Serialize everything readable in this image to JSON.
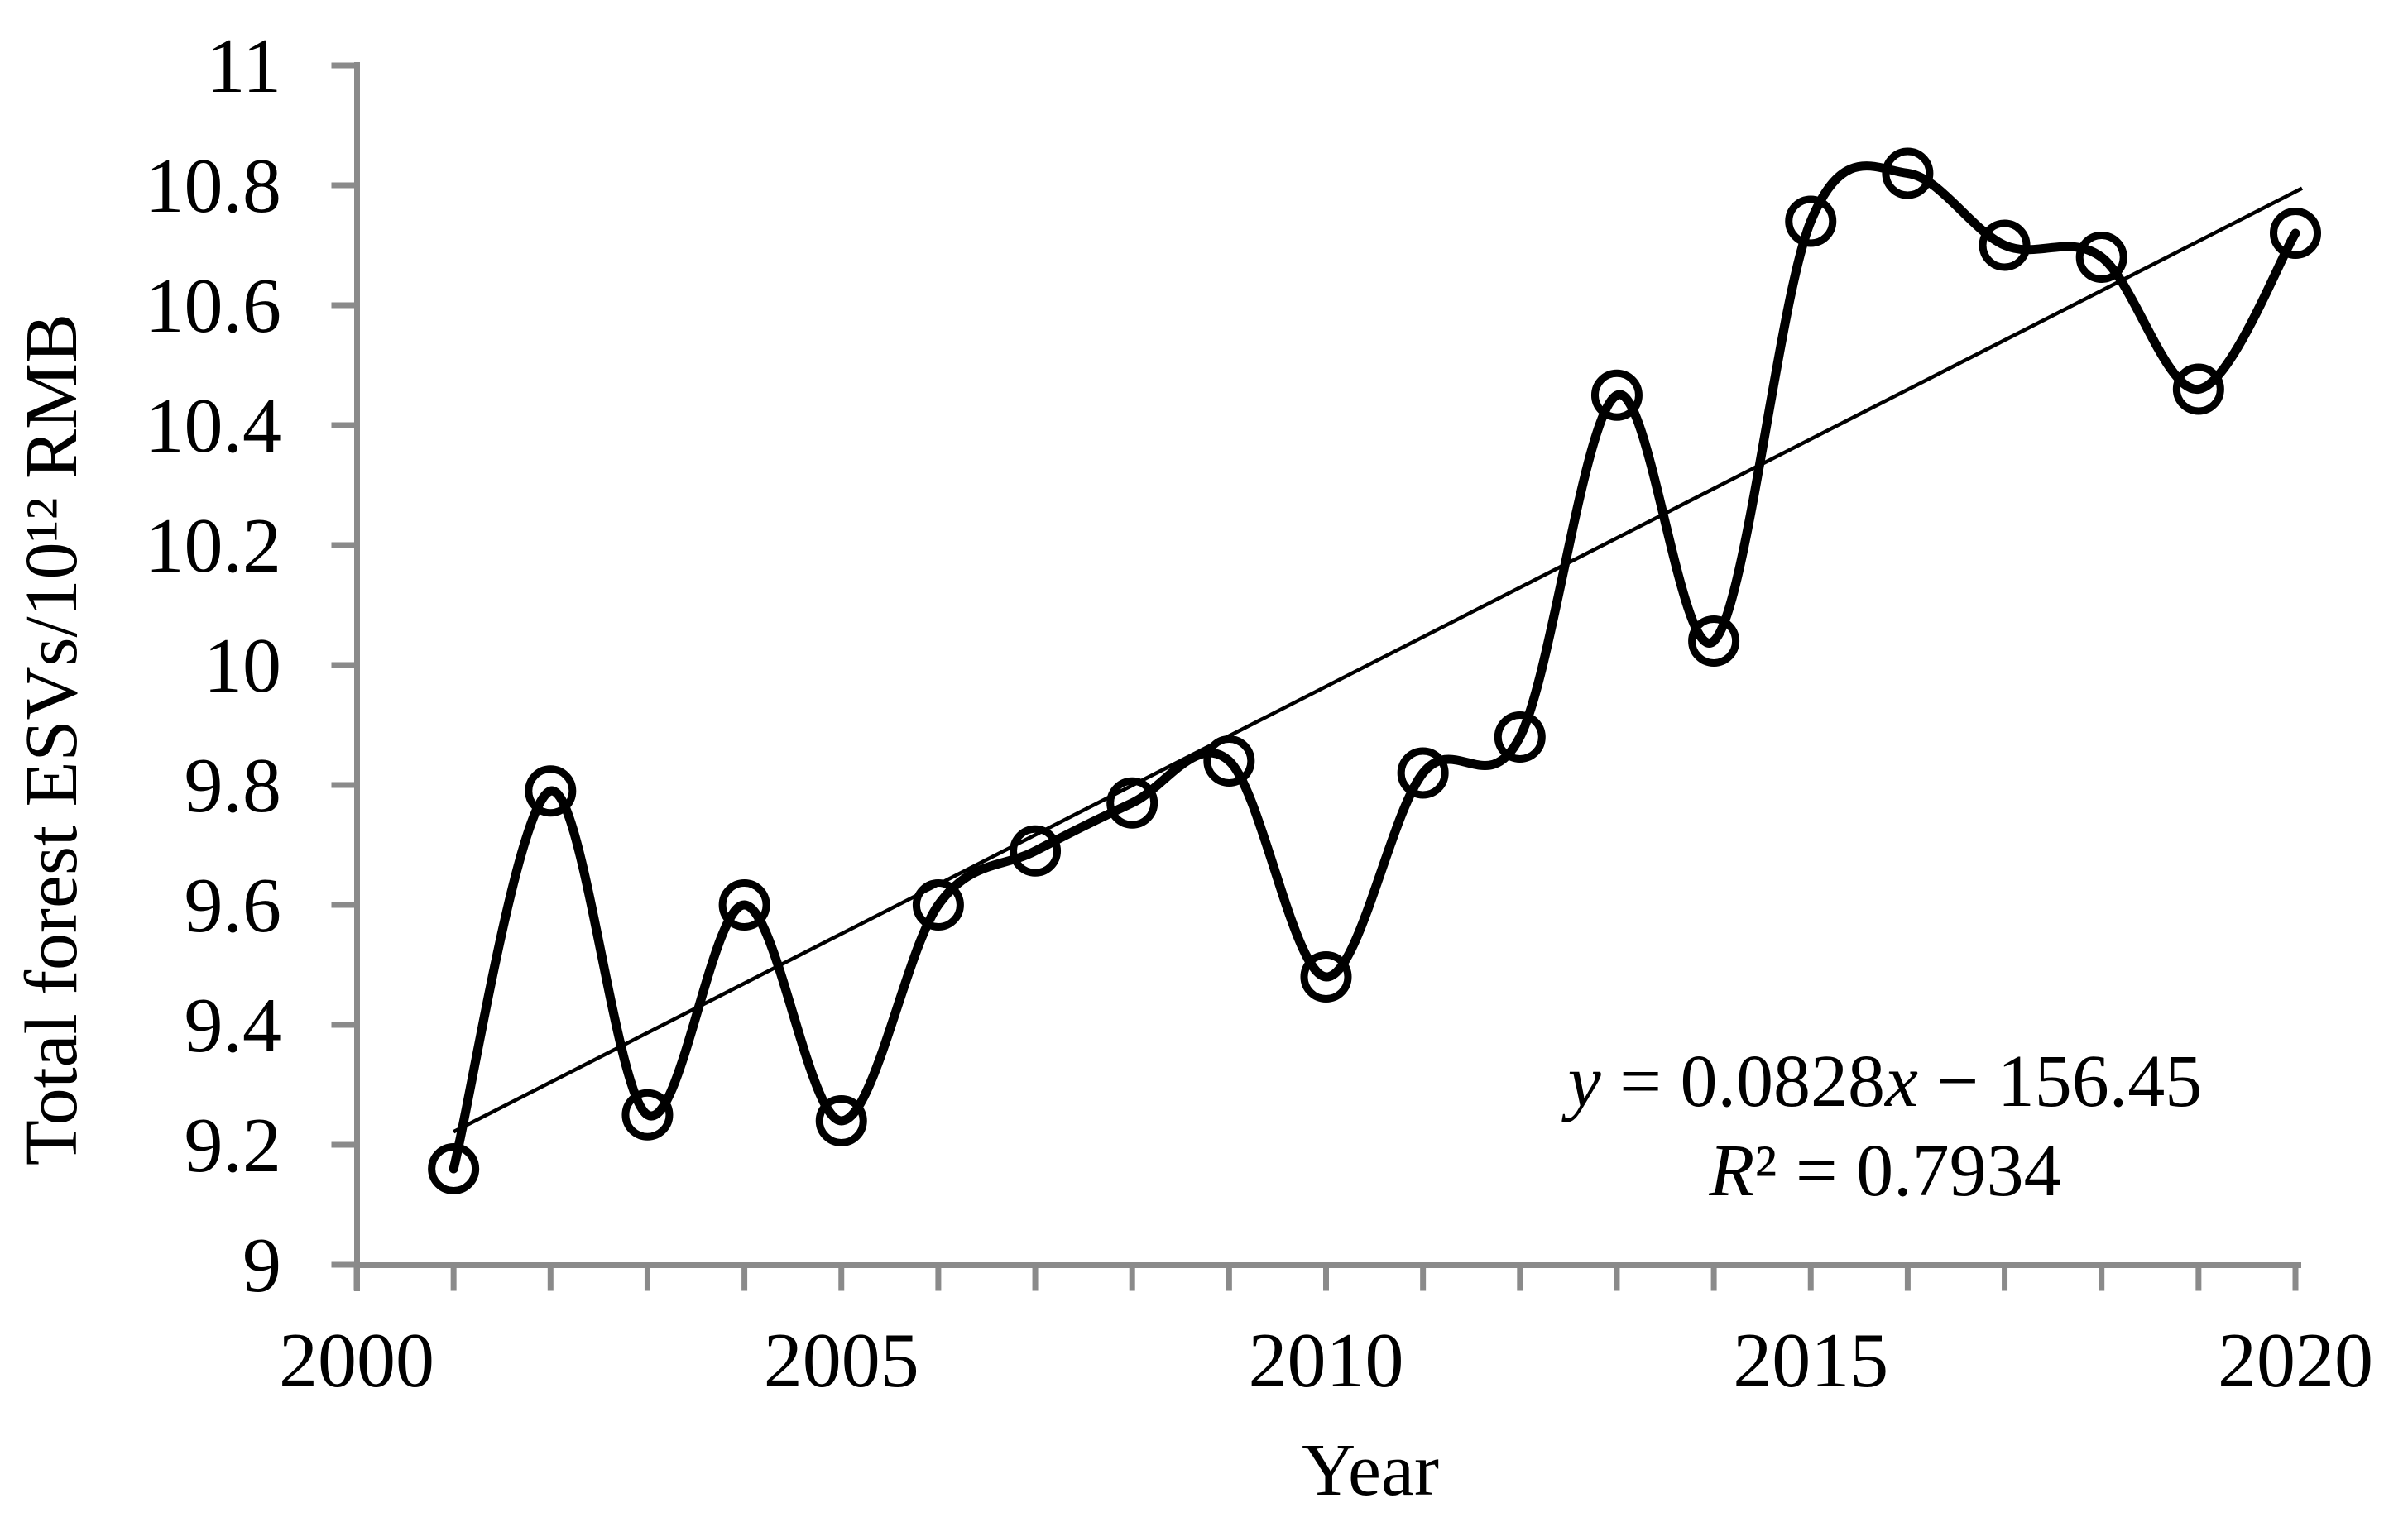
{
  "chart_data": {
    "type": "line",
    "title": "",
    "xlabel": "Year",
    "ylabel": "Total forest ESVs/10¹² RMB",
    "x": [
      2001,
      2002,
      2003,
      2004,
      2005,
      2006,
      2007,
      2008,
      2009,
      2010,
      2011,
      2012,
      2013,
      2014,
      2015,
      2016,
      2017,
      2018,
      2019,
      2020
    ],
    "series": [
      {
        "name": "Total forest ESVs",
        "values": [
          9.16,
          9.79,
          9.25,
          9.6,
          9.24,
          9.6,
          9.69,
          9.77,
          9.84,
          9.48,
          9.82,
          9.88,
          10.45,
          10.04,
          10.74,
          10.82,
          10.7,
          10.68,
          10.46,
          10.72
        ]
      }
    ],
    "trendline": {
      "equation_line1": "y = 0.0828x − 156.45",
      "equation_line2": "R² = 0.7934",
      "slope": 0.0828,
      "intercept": -156.45,
      "x_start": 2001,
      "x_end": 2020
    },
    "xlim": [
      2000,
      2020
    ],
    "ylim": [
      9,
      11
    ],
    "y_tick_values": [
      9,
      9.2,
      9.4,
      9.6,
      9.8,
      10,
      10.2,
      10.4,
      10.6,
      10.8,
      11
    ],
    "y_tick_labels": [
      "9",
      "9.2",
      "9.4",
      "9.6",
      "9.8",
      "10",
      "10.2",
      "10.4",
      "10.6",
      "10.8",
      "11"
    ],
    "x_tick_years": [
      2000,
      2001,
      2002,
      2003,
      2004,
      2005,
      2006,
      2007,
      2008,
      2009,
      2010,
      2011,
      2012,
      2013,
      2014,
      2015,
      2016,
      2017,
      2018,
      2019,
      2020
    ],
    "x_tick_label_years": [
      2000,
      2005,
      2010,
      2015,
      2020
    ],
    "x_tick_labels": [
      "2000",
      "2005",
      "2010",
      "2015",
      "2020"
    ],
    "grid": false,
    "legend": false,
    "marker": "open-circle",
    "line_style": "smooth",
    "colors": {
      "series": "#000000",
      "trend": "#000000",
      "axis": "#8a8a8a",
      "text": "#000000",
      "background": "#ffffff"
    }
  }
}
